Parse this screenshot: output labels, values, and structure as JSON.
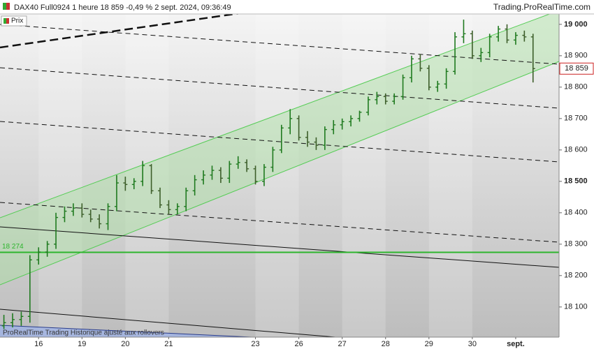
{
  "chart_data": {
    "type": "ohlc",
    "title": "DAX40 Full0924 1 heure 18 859 -0,49 % 2 sept. 2024, 09:36:49",
    "source": "Trading.ProRealTime.com",
    "legend": "Prix",
    "footer": "ProRealTime Trading  Historique ajusté aux rollovers",
    "up_color": "#1f7a1f",
    "down_color": "#3d5e2a",
    "x": [
      -0.8,
      -0.6,
      -0.4,
      -0.2,
      0,
      0.2,
      0.4,
      0.6,
      0.8,
      1,
      1.2,
      1.4,
      1.6,
      1.8,
      2,
      2.2,
      2.4,
      2.6,
      2.8,
      3,
      3.2,
      3.4,
      3.6,
      3.8,
      4,
      4.2,
      4.4,
      4.6,
      4.8,
      5,
      5.2,
      5.4,
      5.6,
      5.8,
      6,
      6.2,
      6.4,
      6.6,
      6.8,
      7,
      7.2,
      7.4,
      7.6,
      7.8,
      8,
      8.2,
      8.4,
      8.6,
      8.8,
      9,
      9.2,
      9.4,
      9.6,
      9.8,
      10,
      10.2,
      10.4,
      10.6,
      10.8,
      11,
      11.2,
      11.4
    ],
    "open": [
      18040,
      18050,
      18060,
      18070,
      18250,
      18275,
      18300,
      18385,
      18405,
      18415,
      18395,
      18380,
      18365,
      18420,
      18495,
      18490,
      18500,
      18550,
      18470,
      18425,
      18410,
      18420,
      18470,
      18505,
      18520,
      18535,
      18510,
      18555,
      18560,
      18540,
      18500,
      18545,
      18600,
      18670,
      18700,
      18640,
      18625,
      18615,
      18665,
      18680,
      18690,
      18700,
      18720,
      18760,
      18770,
      18755,
      18770,
      18830,
      18890,
      18860,
      18800,
      18810,
      18850,
      18960,
      18970,
      18900,
      18910,
      18960,
      18985,
      18950,
      18965,
      18960
    ],
    "high": [
      18075,
      18080,
      18085,
      18265,
      18290,
      18310,
      18400,
      18420,
      18430,
      18430,
      18410,
      18395,
      18430,
      18520,
      18515,
      18510,
      18565,
      18555,
      18480,
      18440,
      18430,
      18480,
      18520,
      18535,
      18550,
      18545,
      18565,
      18580,
      18570,
      18550,
      18555,
      18610,
      18680,
      18730,
      18710,
      18660,
      18640,
      18675,
      18695,
      18700,
      18710,
      18725,
      18770,
      18785,
      18780,
      18780,
      18840,
      18900,
      18905,
      18870,
      18820,
      18860,
      18975,
      19015,
      18980,
      18925,
      18970,
      18995,
      19000,
      18975,
      18980,
      18970
    ],
    "low": [
      18030,
      18035,
      18040,
      18050,
      18235,
      18260,
      18285,
      18370,
      18390,
      18385,
      18370,
      18350,
      18345,
      18405,
      18470,
      18475,
      18485,
      18460,
      18415,
      18395,
      18395,
      18405,
      18455,
      18490,
      18505,
      18495,
      18495,
      18540,
      18530,
      18490,
      18485,
      18530,
      18590,
      18650,
      18630,
      18610,
      18600,
      18600,
      18650,
      18665,
      18675,
      18690,
      18710,
      18745,
      18745,
      18745,
      18760,
      18815,
      18850,
      18790,
      18785,
      18795,
      18840,
      18940,
      18890,
      18880,
      18895,
      18945,
      18940,
      18935,
      18945,
      18815
    ],
    "close": [
      18050,
      18060,
      18070,
      18250,
      18275,
      18300,
      18385,
      18405,
      18415,
      18395,
      18380,
      18365,
      18420,
      18495,
      18490,
      18500,
      18550,
      18470,
      18425,
      18410,
      18420,
      18470,
      18505,
      18520,
      18535,
      18510,
      18555,
      18560,
      18540,
      18500,
      18545,
      18600,
      18670,
      18700,
      18640,
      18625,
      18615,
      18665,
      18680,
      18690,
      18700,
      18720,
      18760,
      18770,
      18755,
      18770,
      18830,
      18890,
      18860,
      18800,
      18810,
      18850,
      18960,
      18970,
      18900,
      18910,
      18960,
      18985,
      18950,
      18965,
      18960,
      18859
    ],
    "xlim": [
      -0.89,
      12.0
    ],
    "xticks": [
      {
        "value": 0,
        "label": "16"
      },
      {
        "value": 1,
        "label": "19"
      },
      {
        "value": 2,
        "label": "20"
      },
      {
        "value": 3,
        "label": "21"
      },
      {
        "value": 5,
        "label": "23"
      },
      {
        "value": 6,
        "label": "26"
      },
      {
        "value": 7,
        "label": "27"
      },
      {
        "value": 8,
        "label": "28"
      },
      {
        "value": 9,
        "label": "29"
      },
      {
        "value": 10,
        "label": "30"
      },
      {
        "value": 11,
        "label": "sept."
      }
    ],
    "ylim": [
      18004,
      19033
    ],
    "yticks": [
      {
        "value": 18100,
        "label": "18 100"
      },
      {
        "value": 18200,
        "label": "18 200"
      },
      {
        "value": 18300,
        "label": "18 300"
      },
      {
        "value": 18400,
        "label": "18 400"
      },
      {
        "value": 18500,
        "label": "18 500"
      },
      {
        "value": 18600,
        "label": "18 600"
      },
      {
        "value": 18700,
        "label": "18 700"
      },
      {
        "value": 18800,
        "label": "18 800"
      },
      {
        "value": 18900,
        "label": "18 900"
      },
      {
        "value": 19000,
        "label": "19 000"
      }
    ],
    "hline": {
      "value": 18274,
      "label": "18 274",
      "color": "#2db52d"
    },
    "last": {
      "value": 18859,
      "label": "18 859",
      "color": "#cc2222"
    }
  }
}
